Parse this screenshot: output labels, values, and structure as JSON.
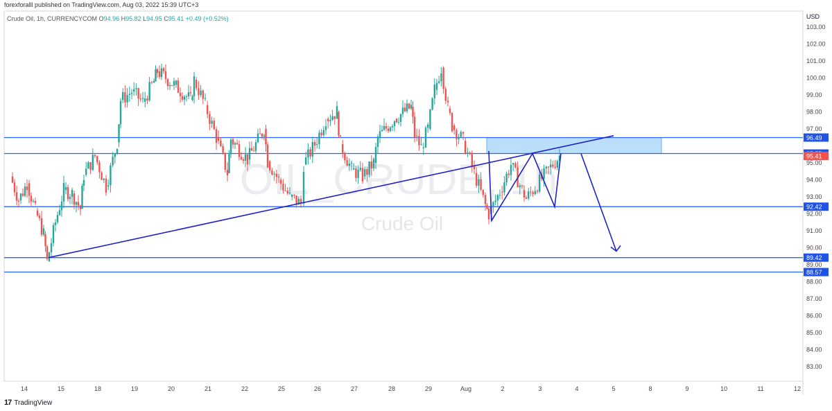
{
  "header": {
    "published_text": "forexforalll published on TradingView.com, Aug 03, 2022 15:39 UTC+3"
  },
  "legend": {
    "symbol": "Crude Oil, 1h, CURRENCYCOM",
    "o_label": "O",
    "o": "94.96",
    "h_label": "H",
    "h": "95.82",
    "l_label": "L",
    "l": "94.95",
    "c_label": "C",
    "c": "95.41",
    "change": "+0.49 (+0.52%)"
  },
  "watermark": {
    "ticker": "OIL_CRUDE, 1h",
    "name": "Crude Oil"
  },
  "footer": {
    "brand": "TradingView",
    "logo_glyph": "17"
  },
  "colors": {
    "up": "#26a69a",
    "down": "#ef5350",
    "level_line": "#2962ff",
    "drawing": "#1e22c8",
    "zone_fill": "#bbdefb",
    "price_label_bg": "#1e53e5",
    "current_label_bg": "#ef5350"
  },
  "chart_data": {
    "type": "candlestick",
    "title": "Crude Oil, 1h, CURRENCYCOM",
    "currency": "USD",
    "y_axis_ticks": [
      "103.00",
      "102.00",
      "101.00",
      "100.00",
      "99.00",
      "98.00",
      "97.00",
      "95.00",
      "94.00",
      "93.00",
      "92.00",
      "91.00",
      "90.00",
      "89.00",
      "88.00",
      "87.00",
      "86.00",
      "85.00",
      "84.00",
      "83.00"
    ],
    "x_axis_ticks": [
      "14",
      "15",
      "18",
      "19",
      "20",
      "21",
      "22",
      "25",
      "26",
      "27",
      "28",
      "29",
      "Aug",
      "2",
      "3",
      "4",
      "5",
      "8",
      "9",
      "10",
      "11",
      "12"
    ],
    "ylim": [
      82.0,
      103.6
    ],
    "horizontal_levels": [
      96.49,
      95.55,
      92.42,
      89.42,
      88.57
    ],
    "price_labels": [
      {
        "value": "96.49",
        "kind": "level"
      },
      {
        "value": "95.55",
        "kind": "level"
      },
      {
        "value": "95.41",
        "kind": "current"
      },
      {
        "value": "92.42",
        "kind": "level"
      },
      {
        "value": "89.42",
        "kind": "level"
      },
      {
        "value": "88.57",
        "kind": "level"
      }
    ],
    "resistance_zone": {
      "low": 95.55,
      "high": 96.49,
      "from": "Aug 1",
      "to": "Aug 8"
    },
    "trendline": {
      "from": {
        "date": "Jul 14",
        "price": 89.42
      },
      "to": {
        "date": "Aug 5",
        "price": 96.6
      }
    },
    "zigzag": [
      {
        "date": "Aug 1",
        "price": 95.7
      },
      {
        "date": "Aug 1",
        "price": 91.6
      },
      {
        "date": "Aug 2",
        "price": 95.55
      },
      {
        "date": "Aug 3",
        "price": 92.42
      },
      {
        "date": "Aug 3",
        "price": 95.55
      }
    ],
    "forecast_arrow": {
      "from": {
        "date": "Aug 4",
        "price": 95.55
      },
      "to": {
        "date": "Aug 5",
        "price": 89.8
      }
    },
    "candle_path_approx": [
      {
        "date": "Jul 14",
        "price": 94.2
      },
      {
        "date": "Jul 14",
        "price": 92.8
      },
      {
        "date": "Jul 14",
        "price": 93.8
      },
      {
        "date": "Jul 14",
        "price": 92.2
      },
      {
        "date": "Jul 14",
        "price": 90.8
      },
      {
        "date": "Jul 15",
        "price": 89.2
      },
      {
        "date": "Jul 15",
        "price": 91.5
      },
      {
        "date": "Jul 15",
        "price": 93.4
      },
      {
        "date": "Jul 15",
        "price": 93.2
      },
      {
        "date": "Jul 15",
        "price": 92.3
      },
      {
        "date": "Jul 18",
        "price": 94.3
      },
      {
        "date": "Jul 18",
        "price": 95.4
      },
      {
        "date": "Jul 18",
        "price": 93.6
      },
      {
        "date": "Jul 18",
        "price": 96.2
      },
      {
        "date": "Jul 19",
        "price": 98.7
      },
      {
        "date": "Jul 19",
        "price": 99.2
      },
      {
        "date": "Jul 19",
        "price": 98.6
      },
      {
        "date": "Jul 19",
        "price": 99.8
      },
      {
        "date": "Jul 20",
        "price": 100.4
      },
      {
        "date": "Jul 20",
        "price": 99.6
      },
      {
        "date": "Jul 20",
        "price": 98.7
      },
      {
        "date": "Jul 21",
        "price": 99.9
      },
      {
        "date": "Jul 21",
        "price": 98.4
      },
      {
        "date": "Jul 21",
        "price": 96.5
      },
      {
        "date": "Jul 21",
        "price": 94.4
      },
      {
        "date": "Jul 22",
        "price": 96.4
      },
      {
        "date": "Jul 22",
        "price": 95.2
      },
      {
        "date": "Jul 22",
        "price": 97.0
      },
      {
        "date": "Jul 25",
        "price": 95.1
      },
      {
        "date": "Jul 25",
        "price": 94.0
      },
      {
        "date": "Jul 25",
        "price": 93.0
      },
      {
        "date": "Jul 25",
        "price": 92.6
      },
      {
        "date": "Jul 26",
        "price": 94.9
      },
      {
        "date": "Jul 26",
        "price": 96.1
      },
      {
        "date": "Jul 26",
        "price": 97.6
      },
      {
        "date": "Jul 26",
        "price": 98.0
      },
      {
        "date": "Jul 27",
        "price": 96.1
      },
      {
        "date": "Jul 27",
        "price": 94.6
      },
      {
        "date": "Jul 27",
        "price": 94.2
      },
      {
        "date": "Jul 27",
        "price": 95.0
      },
      {
        "date": "Jul 28",
        "price": 96.5
      },
      {
        "date": "Jul 28",
        "price": 97.6
      },
      {
        "date": "Jul 28",
        "price": 98.3
      },
      {
        "date": "Jul 29",
        "price": 96.6
      },
      {
        "date": "Jul 29",
        "price": 95.9
      },
      {
        "date": "Jul 29",
        "price": 97.0
      },
      {
        "date": "Jul 29",
        "price": 99.3
      },
      {
        "date": "Jul 29",
        "price": 100.6
      },
      {
        "date": "Jul 29",
        "price": 98.2
      },
      {
        "date": "Aug 1",
        "price": 97.2
      },
      {
        "date": "Aug 1",
        "price": 96.3
      },
      {
        "date": "Aug 1",
        "price": 94.4
      },
      {
        "date": "Aug 1",
        "price": 92.5
      },
      {
        "date": "Aug 2",
        "price": 92.0
      },
      {
        "date": "Aug 2",
        "price": 93.3
      },
      {
        "date": "Aug 2",
        "price": 94.9
      },
      {
        "date": "Aug 2",
        "price": 93.4
      },
      {
        "date": "Aug 3",
        "price": 92.9
      },
      {
        "date": "Aug 3",
        "price": 95.41
      }
    ]
  }
}
